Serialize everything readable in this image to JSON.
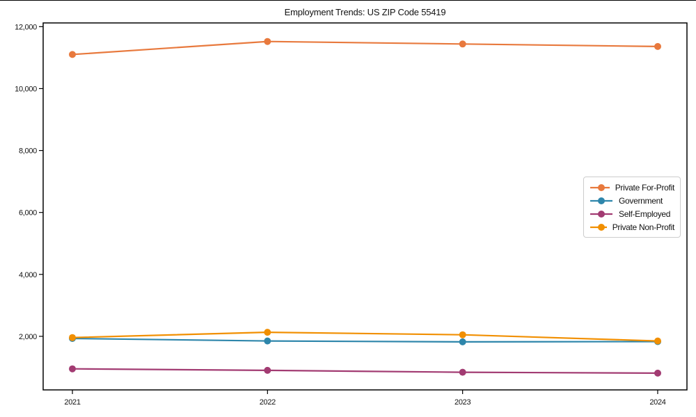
{
  "chart_data": {
    "type": "line",
    "title": "Employment Trends: US ZIP Code 55419",
    "categories": [
      "2021",
      "2022",
      "2023",
      "2024"
    ],
    "series": [
      {
        "name": "Private For-Profit",
        "color": "#E8793D",
        "values": [
          11100,
          11520,
          11440,
          11360
        ]
      },
      {
        "name": "Government",
        "color": "#2E86AB",
        "values": [
          1930,
          1850,
          1820,
          1830
        ]
      },
      {
        "name": "Self-Employed",
        "color": "#A23B72",
        "values": [
          950,
          900,
          840,
          810
        ]
      },
      {
        "name": "Private Non-Profit",
        "color": "#F18F01",
        "values": [
          1960,
          2130,
          2050,
          1850
        ]
      }
    ],
    "yticks": [
      2000,
      4000,
      6000,
      8000,
      10000,
      12000
    ],
    "ytick_labels": [
      "2,000",
      "4,000",
      "6,000",
      "8,000",
      "10,000",
      "12,000"
    ],
    "ylim": [
      270,
      12120
    ],
    "xlabel": "",
    "ylabel": "",
    "grid": false,
    "legend_position": "center-right",
    "marker": "circle",
    "frame_color": "#000000"
  }
}
